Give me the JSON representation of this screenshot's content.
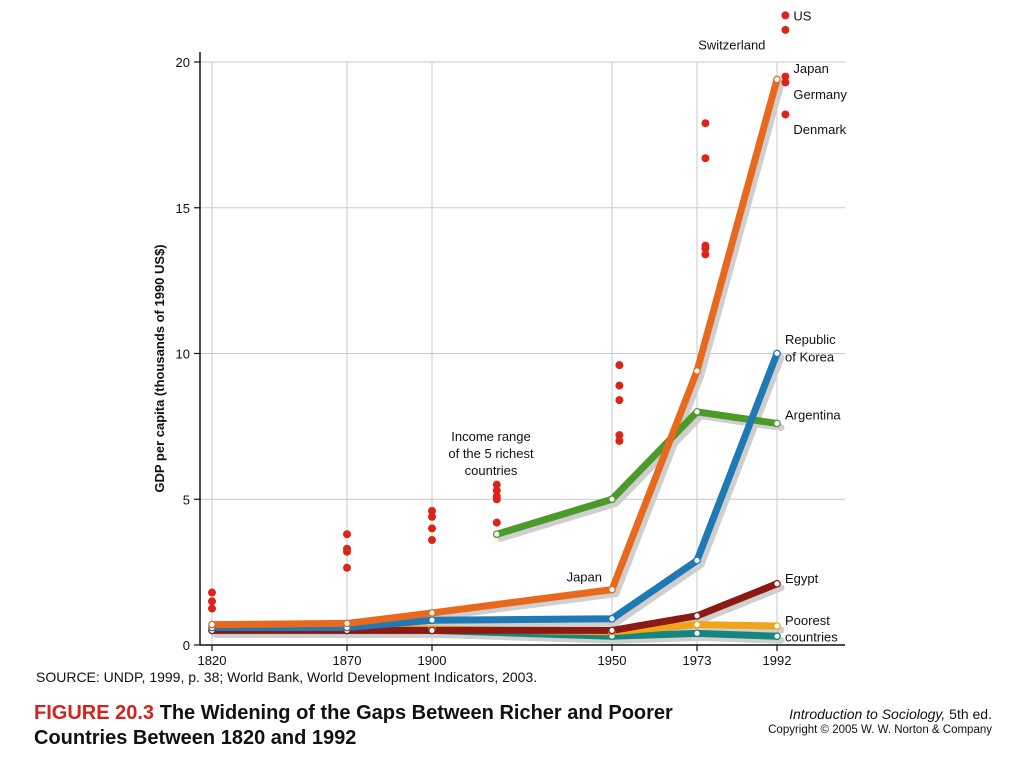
{
  "chart_data": {
    "type": "line",
    "ylabel": "GDP per capita (thousands of 1990 US$)",
    "xlabel": "",
    "ylim": [
      0,
      20
    ],
    "x_ticks": [
      1820,
      1870,
      1900,
      1950,
      1973,
      1992
    ],
    "y_ticks": [
      0,
      5,
      10,
      15,
      20
    ],
    "grid": true,
    "series": [
      {
        "name": "Japan",
        "color": "#e8691e",
        "points": [
          [
            1820,
            0.7
          ],
          [
            1870,
            0.74
          ],
          [
            1900,
            1.1
          ],
          [
            1950,
            1.9
          ],
          [
            1973,
            9.4
          ],
          [
            1992,
            19.4
          ]
        ],
        "labels": [
          {
            "text": "Japan",
            "x": 1950,
            "y": 1.9
          }
        ]
      },
      {
        "name": "Republic of Korea",
        "color": "#1f79b4",
        "points": [
          [
            1820,
            0.6
          ],
          [
            1870,
            0.6
          ],
          [
            1900,
            0.85
          ],
          [
            1950,
            0.9
          ],
          [
            1973,
            2.9
          ],
          [
            1992,
            10.0
          ]
        ],
        "labels": [
          {
            "text": "Republic",
            "x": 1992,
            "y": 10.5
          },
          {
            "text": "of Korea",
            "x": 1992,
            "y": 9.9
          }
        ]
      },
      {
        "name": "Argentina",
        "color": "#4c9a2a",
        "points": [
          [
            1918,
            3.8
          ],
          [
            1950,
            5.0
          ],
          [
            1973,
            8.0
          ],
          [
            1992,
            7.6
          ]
        ],
        "labels": [
          {
            "text": "Argentina",
            "x": 1992,
            "y": 7.9
          }
        ]
      },
      {
        "name": "Egypt",
        "color": "#8b1a12",
        "points": [
          [
            1820,
            0.5
          ],
          [
            1870,
            0.5
          ],
          [
            1900,
            0.5
          ],
          [
            1950,
            0.5
          ],
          [
            1973,
            1.0
          ],
          [
            1992,
            2.1
          ]
        ],
        "labels": [
          {
            "text": "Egypt",
            "x": 1992,
            "y": 2.3
          }
        ]
      },
      {
        "name": "Poorest countries",
        "color": "#f0a41a",
        "points": [
          [
            1820,
            0.55
          ],
          [
            1870,
            0.55
          ],
          [
            1900,
            0.55
          ],
          [
            1950,
            0.45
          ],
          [
            1973,
            0.7
          ],
          [
            1992,
            0.65
          ]
        ],
        "labels": [
          {
            "text": "Poorest",
            "x": 1992,
            "y": 0.85
          },
          {
            "text": "countries",
            "x": 1992,
            "y": 0.3
          }
        ]
      },
      {
        "name": "",
        "color": "#16857e",
        "points": [
          [
            1820,
            0.5
          ],
          [
            1870,
            0.5
          ],
          [
            1900,
            0.5
          ],
          [
            1950,
            0.3
          ],
          [
            1973,
            0.4
          ],
          [
            1992,
            0.3
          ]
        ],
        "labels": []
      }
    ],
    "richest_range": {
      "color": "#dd2418",
      "points": [
        [
          1820,
          1.8
        ],
        [
          1820,
          1.5
        ],
        [
          1820,
          1.25
        ],
        [
          1870,
          3.8
        ],
        [
          1870,
          3.3
        ],
        [
          1870,
          3.2
        ],
        [
          1870,
          2.65
        ],
        [
          1900,
          4.6
        ],
        [
          1900,
          4.4
        ],
        [
          1900,
          4.0
        ],
        [
          1900,
          3.6
        ],
        [
          1918,
          5.5
        ],
        [
          1918,
          5.3
        ],
        [
          1918,
          5.1
        ],
        [
          1918,
          5.0
        ],
        [
          1918,
          4.2
        ],
        [
          1952,
          9.6
        ],
        [
          1952,
          8.9
        ],
        [
          1952,
          8.4
        ],
        [
          1952,
          7.2
        ],
        [
          1952,
          7.0
        ],
        [
          1975,
          17.9
        ],
        [
          1975,
          16.7
        ],
        [
          1975,
          13.7
        ],
        [
          1975,
          13.6
        ],
        [
          1975,
          13.4
        ],
        [
          1994,
          21.6
        ],
        [
          1994,
          21.1
        ],
        [
          1994,
          19.5
        ],
        [
          1994,
          19.3
        ],
        [
          1994,
          18.2
        ]
      ],
      "labels": [
        {
          "text": "US",
          "x": 1994,
          "y": 21.6
        },
        {
          "text": "Switzerland",
          "x": 1994,
          "y": 20.6
        },
        {
          "text": "Japan",
          "x": 1994,
          "y": 19.8
        },
        {
          "text": "Germany",
          "x": 1994,
          "y": 18.9
        },
        {
          "text": "Denmark",
          "x": 1994,
          "y": 17.7
        }
      ]
    },
    "annotations": [
      {
        "lines": [
          "Income range",
          "of the 5 richest",
          "countries"
        ],
        "x": 1915,
        "y": 7.0
      }
    ]
  },
  "source_text": "SOURCE: UNDP, 1999, p. 38; World Bank, World Development Indicators, 2003.",
  "caption": {
    "figure_number": "FIGURE 20.3",
    "title": "The Widening of the Gaps Between Richer and Poorer Countries Between 1820 and 1992"
  },
  "book": {
    "title": "Introduction to Sociology,",
    "edition": "5th ed.",
    "copyright": "Copyright © 2005 W. W. Norton & Company"
  }
}
